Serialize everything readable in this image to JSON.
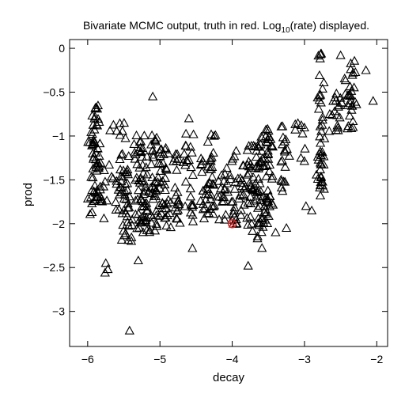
{
  "chart_data": {
    "type": "scatter",
    "title_main": "Bivariate MCMC output, truth in red. Log",
    "title_sub": "10",
    "title_tail": "(rate) displayed.",
    "xlabel": "decay",
    "ylabel": "prod",
    "xlim": [
      -6.25,
      -1.85
    ],
    "ylim": [
      -3.4,
      0.1
    ],
    "xticks": [
      -6,
      -5,
      -4,
      -3,
      -2
    ],
    "yticks": [
      0,
      -0.5,
      -1,
      -1.5,
      -2,
      -2.5,
      -3
    ],
    "xtick_labels": [
      "−6",
      "−5",
      "−4",
      "−3",
      "−2"
    ],
    "ytick_labels": [
      "0",
      "−0.5",
      "−1",
      "−1.5",
      "−2",
      "−2.5",
      "−3"
    ],
    "grid": false,
    "marker_color": "#000000",
    "truth_color": "#e02020",
    "truth": {
      "x": -4.0,
      "y": -2.0
    },
    "clusters": [
      {
        "x": -5.9,
        "xs": 0.04,
        "ymin": -1.9,
        "ymax": -0.65,
        "n": 60
      },
      {
        "x": -5.8,
        "xs": 0.05,
        "ymin": -2.1,
        "ymax": -1.25,
        "n": 12
      },
      {
        "x": -5.55,
        "xs": 0.04,
        "ymin": -1.95,
        "ymax": -0.8,
        "n": 30
      },
      {
        "x": -5.45,
        "xs": 0.05,
        "ymin": -2.2,
        "ymax": -1.2,
        "n": 30
      },
      {
        "x": -5.3,
        "xs": 0.04,
        "ymin": -2.1,
        "ymax": -1.05,
        "n": 30
      },
      {
        "x": -5.18,
        "xs": 0.06,
        "ymin": -2.1,
        "ymax": -0.95,
        "n": 40
      },
      {
        "x": -5.05,
        "xs": 0.05,
        "ymin": -2.1,
        "ymax": -1.0,
        "n": 40
      },
      {
        "x": -4.92,
        "xs": 0.04,
        "ymin": -2.05,
        "ymax": -1.1,
        "n": 28
      },
      {
        "x": -4.75,
        "xs": 0.03,
        "ymin": -2.0,
        "ymax": -1.2,
        "n": 20
      },
      {
        "x": -4.6,
        "xs": 0.04,
        "ymin": -2.0,
        "ymax": -0.95,
        "n": 25
      },
      {
        "x": -4.4,
        "xs": 0.03,
        "ymin": -1.95,
        "ymax": -1.25,
        "n": 15
      },
      {
        "x": -4.28,
        "xs": 0.04,
        "ymin": -1.9,
        "ymax": -0.95,
        "n": 30
      },
      {
        "x": -4.15,
        "xs": 0.04,
        "ymin": -2.05,
        "ymax": -1.3,
        "n": 18
      },
      {
        "x": -3.98,
        "xs": 0.04,
        "ymin": -2.1,
        "ymax": -1.1,
        "n": 20
      },
      {
        "x": -3.88,
        "xs": 0.03,
        "ymin": -2.1,
        "ymax": -1.3,
        "n": 15
      },
      {
        "x": -3.75,
        "xs": 0.04,
        "ymin": -2.2,
        "ymax": -1.1,
        "n": 25
      },
      {
        "x": -3.65,
        "xs": 0.04,
        "ymin": -2.3,
        "ymax": -0.95,
        "n": 35
      },
      {
        "x": -3.55,
        "xs": 0.04,
        "ymin": -2.1,
        "ymax": -0.9,
        "n": 35
      },
      {
        "x": -3.48,
        "xs": 0.03,
        "ymin": -1.8,
        "ymax": -0.85,
        "n": 20
      },
      {
        "x": -3.28,
        "xs": 0.03,
        "ymin": -1.65,
        "ymax": -0.85,
        "n": 20
      },
      {
        "x": -3.05,
        "xs": 0.07,
        "ymin": -1.3,
        "ymax": -0.85,
        "n": 8
      },
      {
        "x": -2.78,
        "xs": 0.03,
        "ymin": -1.7,
        "ymax": -0.05,
        "n": 45
      },
      {
        "x": -2.55,
        "xs": 0.04,
        "ymin": -1.05,
        "ymax": -0.45,
        "n": 18
      },
      {
        "x": -2.35,
        "xs": 0.04,
        "ymin": -0.95,
        "ymax": -0.1,
        "n": 30
      }
    ],
    "extra_points": [
      [
        -5.42,
        -3.22
      ],
      [
        -5.75,
        -2.45
      ],
      [
        -5.72,
        -2.52
      ],
      [
        -5.76,
        -2.56
      ],
      [
        -5.3,
        -2.42
      ],
      [
        -4.55,
        -2.28
      ],
      [
        -3.78,
        -2.48
      ],
      [
        -3.4,
        -2.1
      ],
      [
        -5.1,
        -0.55
      ],
      [
        -2.65,
        -0.75
      ],
      [
        -2.05,
        -0.6
      ],
      [
        -2.15,
        -0.25
      ],
      [
        -2.5,
        -0.08
      ],
      [
        -4.6,
        -0.8
      ],
      [
        -4.33,
        -1.35
      ],
      [
        -3.25,
        -2.05
      ],
      [
        -3.05,
        -1.25
      ],
      [
        -2.78,
        -1.68
      ],
      [
        -2.9,
        -1.85
      ],
      [
        -2.98,
        -1.8
      ]
    ],
    "seed": 20240611
  }
}
